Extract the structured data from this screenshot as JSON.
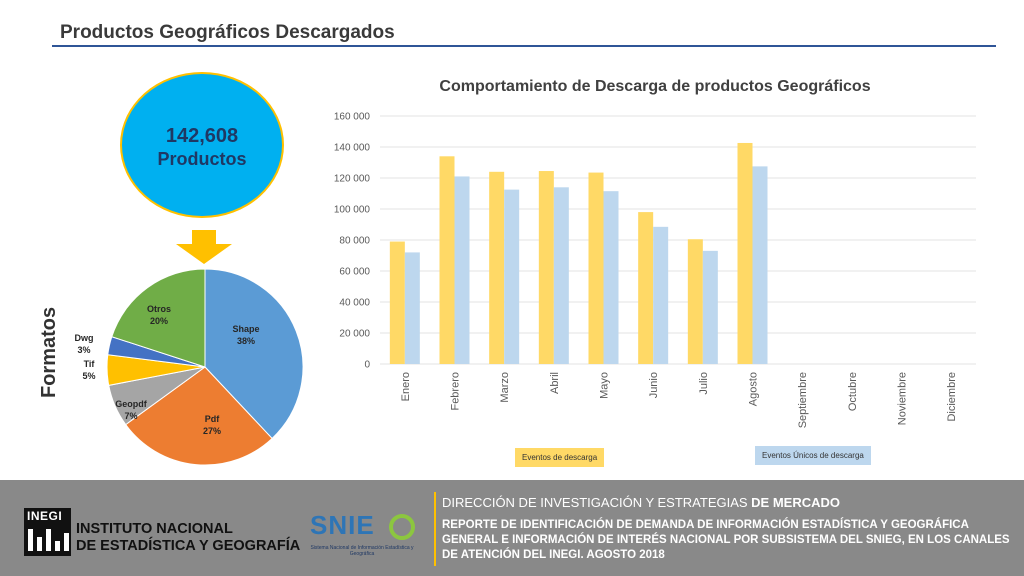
{
  "header": {
    "title": "Productos Geográficos Descargados"
  },
  "summary": {
    "total": "142,608",
    "label": "Productos"
  },
  "formats": {
    "axis_label": "Formatos",
    "slices": [
      {
        "name": "Shape",
        "pct_label": "38%",
        "value": 38,
        "color": "#5b9bd5"
      },
      {
        "name": "Pdf",
        "pct_label": "27%",
        "value": 27,
        "color": "#ed7d31"
      },
      {
        "name": "Geopdf",
        "pct_label": "7%",
        "value": 7,
        "color": "#a5a5a5"
      },
      {
        "name": "Tif",
        "pct_label": "5%",
        "value": 5,
        "color": "#ffc000"
      },
      {
        "name": "Dwg",
        "pct_label": "3%",
        "value": 3,
        "color": "#4472c4"
      },
      {
        "name": "Otros",
        "pct_label": "20%",
        "value": 20,
        "color": "#70ad47"
      }
    ]
  },
  "chart_data": {
    "type": "bar",
    "title": "Comportamiento de Descarga de productos Geográficos",
    "categories": [
      "Enero",
      "Febrero",
      "Marzo",
      "Abril",
      "Mayo",
      "Junio",
      "Julio",
      "Agosto",
      "Septiembre",
      "Octubre",
      "Noviembre",
      "Diciembre"
    ],
    "series": [
      {
        "name": "Eventos de descarga",
        "color": "#ffd966",
        "values": [
          79000,
          134000,
          124000,
          124500,
          123500,
          98000,
          80500,
          142600,
          null,
          null,
          null,
          null
        ]
      },
      {
        "name": "Eventos Únicos de descarga",
        "color": "#bdd7ee",
        "values": [
          72000,
          121000,
          112500,
          114000,
          111500,
          88500,
          73000,
          127500,
          null,
          null,
          null,
          null
        ]
      }
    ],
    "yticks": [
      "0",
      "20 000",
      "40 000",
      "60 000",
      "80 000",
      "100 000",
      "120 000",
      "140 000",
      "160 000"
    ],
    "ylim": [
      0,
      160000
    ],
    "grid": true
  },
  "footer": {
    "logo_text": "INEGI",
    "institute_line1": "INSTITUTO NACIONAL",
    "institute_line2": "DE ESTADÍSTICA Y GEOGRAFÍA",
    "snieg_logo": "SNIE",
    "snieg_sub": "Sistema Nacional de Información Estadística y Geográfica",
    "direction_a": "DIRECCIÓN DE INVESTIGACIÓN Y ESTRATEGIAS ",
    "direction_b": "DE MERCADO",
    "report": "REPORTE DE IDENTIFICACIÓN DE DEMANDA DE INFORMACIÓN ESTADÍSTICA Y GEOGRÁFICA GENERAL E INFORMACIÓN DE INTERÉS NACIONAL POR SUBSISTEMA DEL SNIEG, EN LOS CANALES DE ATENCIÓN DEL INEGI. AGOSTO 2018"
  }
}
